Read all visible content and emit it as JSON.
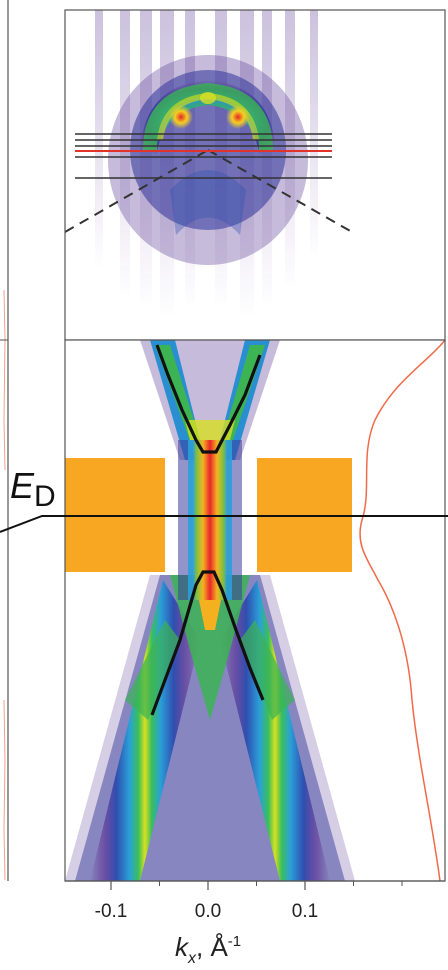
{
  "chart_data": {
    "type": "heatmap",
    "xlabel": {
      "symbol": "k",
      "subscript": "x",
      "unit_prefix": ", Å",
      "unit_exp": "-1"
    },
    "x_ticks": [
      "-0.1",
      "0.0",
      "0.1"
    ],
    "x_tick_values": [
      -0.1,
      0.0,
      0.1
    ],
    "xlim": [
      -0.145,
      0.24
    ],
    "energy_label": {
      "symbol": "E",
      "subscript": "D"
    },
    "upper_panel_cut_lines": [
      {
        "color": "#333333"
      },
      {
        "color": "#333333"
      },
      {
        "color": "#333333"
      },
      {
        "color": "#e2332b"
      },
      {
        "color": "#333333"
      },
      {
        "color": "#333333"
      }
    ],
    "gap_band_color": "#f7a721",
    "dispersion_branches": [
      {
        "name": "",
        "k": [
          -0.055,
          -0.04,
          -0.02,
          0.0,
          0.02,
          0.04,
          0.055
        ]
      },
      {
        "name": "",
        "k": [
          -0.055,
          -0.04,
          -0.02,
          0.0,
          0.02,
          0.04,
          0.055
        ]
      }
    ],
    "edc_line_color": "#f06a4a"
  }
}
